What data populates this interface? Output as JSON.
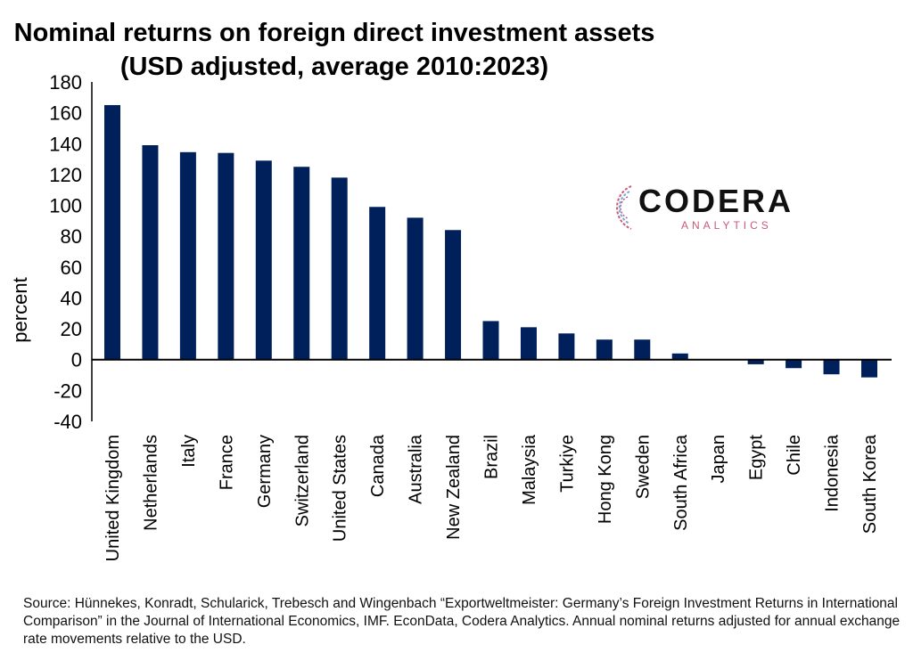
{
  "chart_data": {
    "type": "bar",
    "title": "Nominal returns on foreign direct investment assets",
    "subtitle": "(USD adjusted, average 2010:2023)",
    "xlabel": "",
    "ylabel": "percent",
    "ylim": [
      -40,
      180
    ],
    "yticks": [
      180,
      160,
      140,
      120,
      100,
      80,
      60,
      40,
      20,
      0,
      -20,
      -40
    ],
    "grid": false,
    "bar_color": "#00205b",
    "categories": [
      "United Kingdom",
      "Netherlands",
      "Italy",
      "France",
      "Germany",
      "Switzerland",
      "United States",
      "Canada",
      "Australia",
      "New Zealand",
      "Brazil",
      "Malaysia",
      "Turkiye",
      "Hong Kong",
      "Sweden",
      "South Africa",
      "Japan",
      "Egypt",
      "Chile",
      "Indonesia",
      "South Korea"
    ],
    "values": [
      165,
      139,
      134.5,
      134,
      129,
      125,
      118,
      99,
      92,
      84,
      25,
      21,
      17,
      13,
      13,
      4,
      0,
      -3,
      -5.5,
      -9.5,
      -11.5
    ]
  },
  "logo": {
    "name": "CODERA",
    "sub": "ANALYTICS"
  },
  "source": "Source: Hünnekes, Konradt, Schularick, Trebesch and Wingenbach “Exportweltmeister: Germany’s Foreign Investment Returns in International Comparison” in the Journal of International Economics, IMF. EconData, Codera Analytics. Annual nominal returns adjusted for annual exchange rate movements relative to the USD."
}
